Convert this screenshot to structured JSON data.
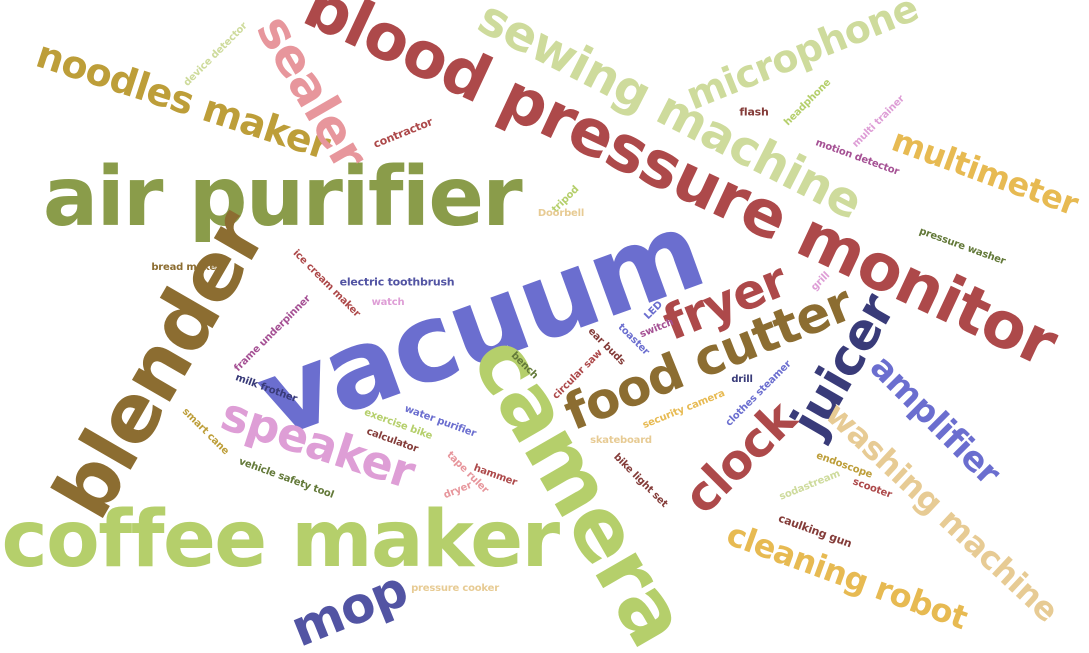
{
  "colors": {
    "olive_green": "#8a9c4a",
    "light_green": "#b5cf6b",
    "pale_green": "#cedb9c",
    "periwinkle": "#6b6ecf",
    "navy": "#393b79",
    "slate_blue": "#5254a3",
    "dark_red": "#ad494a",
    "pink": "#e7969c",
    "brown": "#8c6d31",
    "mustard": "#bd9e39",
    "gold": "#e7ba52",
    "tan": "#e7cb94",
    "magenta": "#a55194",
    "orchid": "#de9ed6",
    "dark_green": "#637939",
    "maroon": "#843c39",
    "plum": "#7b4173"
  },
  "words": [
    {
      "text": "vacuum",
      "color": "#6b6ecf"
    },
    {
      "text": "air purifier",
      "color": "#8a9c4a"
    },
    {
      "text": "blood pressure monitor",
      "color": "#ad494a"
    },
    {
      "text": "coffee maker",
      "color": "#b5cf6b"
    },
    {
      "text": "camera",
      "color": "#b5cf6b"
    },
    {
      "text": "blender",
      "color": "#8c6d31"
    },
    {
      "text": "sewing machine",
      "color": "#cedb9c"
    },
    {
      "text": "food cutter",
      "color": "#8c6d31"
    },
    {
      "text": "noodles maker",
      "color": "#bd9e39"
    },
    {
      "text": "sealer",
      "color": "#e7969c"
    },
    {
      "text": "speaker",
      "color": "#de9ed6"
    },
    {
      "text": "microphone",
      "color": "#cedb9c"
    },
    {
      "text": "fryer",
      "color": "#ad494a"
    },
    {
      "text": "juicer",
      "color": "#393b79"
    },
    {
      "text": "clock",
      "color": "#ad494a"
    },
    {
      "text": "amplifier",
      "color": "#6b6ecf"
    },
    {
      "text": "washing machine",
      "color": "#e7cb94"
    },
    {
      "text": "cleaning robot",
      "color": "#e7ba52"
    },
    {
      "text": "multimeter",
      "color": "#e7ba52"
    },
    {
      "text": "mop",
      "color": "#5254a3"
    },
    {
      "text": "device detector",
      "color": "#cedb9c"
    },
    {
      "text": "contractor",
      "color": "#ad494a"
    },
    {
      "text": "flash",
      "color": "#843c39"
    },
    {
      "text": "headphone",
      "color": "#b5cf6b"
    },
    {
      "text": "multi trainer",
      "color": "#de9ed6"
    },
    {
      "text": "motion detector",
      "color": "#a55194"
    },
    {
      "text": "tripod",
      "color": "#b5cf6b"
    },
    {
      "text": "Doorbell",
      "color": "#e7cb94"
    },
    {
      "text": "pressure washer",
      "color": "#637939"
    },
    {
      "text": "bread maker",
      "color": "#8c6d31"
    },
    {
      "text": "ice cream maker",
      "color": "#ad494a"
    },
    {
      "text": "electric toothbrush",
      "color": "#5254a3"
    },
    {
      "text": "watch",
      "color": "#de9ed6"
    },
    {
      "text": "grill",
      "color": "#de9ed6"
    },
    {
      "text": "LED",
      "color": "#6b6ecf"
    },
    {
      "text": "switch",
      "color": "#a55194"
    },
    {
      "text": "toaster",
      "color": "#6b6ecf"
    },
    {
      "text": "frame underpinner",
      "color": "#a55194"
    },
    {
      "text": "ear buds",
      "color": "#843c39"
    },
    {
      "text": "bench",
      "color": "#637939"
    },
    {
      "text": "circular saw",
      "color": "#ad494a"
    },
    {
      "text": "milk frother",
      "color": "#393b79"
    },
    {
      "text": "drill",
      "color": "#393b79"
    },
    {
      "text": "clothes steamer",
      "color": "#6b6ecf"
    },
    {
      "text": "security camera",
      "color": "#e7ba52"
    },
    {
      "text": "smart cane",
      "color": "#bd9e39"
    },
    {
      "text": "exercise bike",
      "color": "#b5cf6b"
    },
    {
      "text": "water purifier",
      "color": "#6b6ecf"
    },
    {
      "text": "calculator",
      "color": "#843c39"
    },
    {
      "text": "skateboard",
      "color": "#e7cb94"
    },
    {
      "text": "bike light set",
      "color": "#843c39"
    },
    {
      "text": "vehicle safety tool",
      "color": "#637939"
    },
    {
      "text": "tape ruler",
      "color": "#e7969c"
    },
    {
      "text": "hammer",
      "color": "#ad494a"
    },
    {
      "text": "dryer",
      "color": "#e7969c"
    },
    {
      "text": "endoscope",
      "color": "#bd9e39"
    },
    {
      "text": "scooter",
      "color": "#ad494a"
    },
    {
      "text": "sodastream",
      "color": "#cedb9c"
    },
    {
      "text": "caulking gun",
      "color": "#843c39"
    },
    {
      "text": "pressure cooker",
      "color": "#e7cb94"
    }
  ]
}
